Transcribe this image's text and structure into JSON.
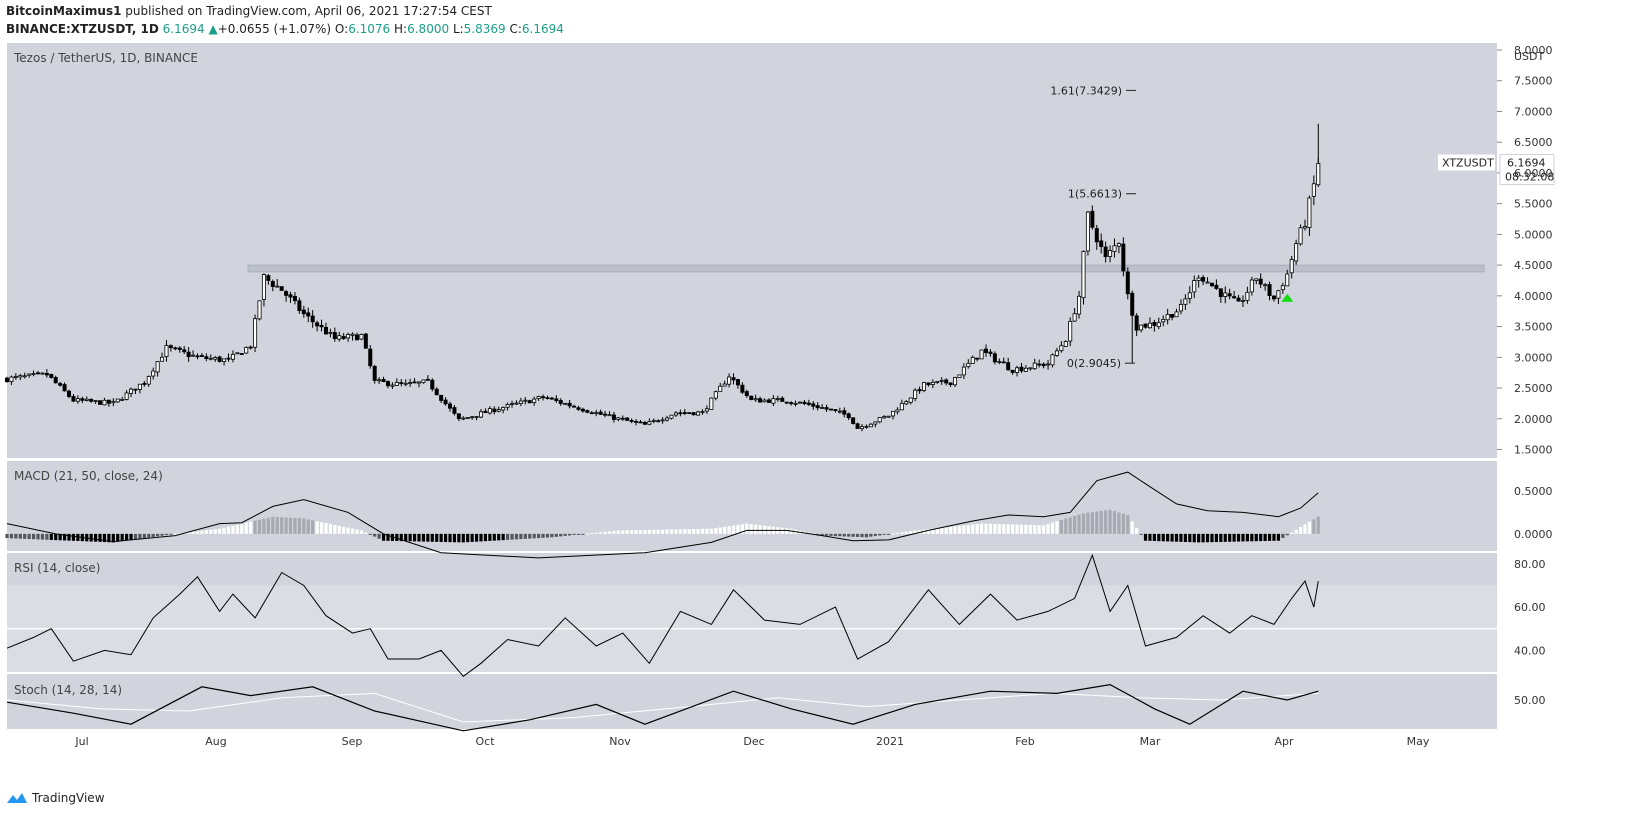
{
  "header": {
    "author": "BitcoinMaximus1",
    "published_text": "published on TradingView.com, April 06, 2021 17:27:54 CEST",
    "symbol": "BINANCE:XTZUSDT, 1D",
    "last": "6.1694",
    "change": "+0.0655 (+1.07%)",
    "open_label": "O:",
    "open": "6.1076",
    "high_label": "H:",
    "high": "6.8000",
    "low_label": "L:",
    "low": "5.8369",
    "close_label": "C:",
    "close": "6.1694"
  },
  "footer": {
    "brand": "TradingView"
  },
  "colors": {
    "panel_bg": "#d1d4dc",
    "rsi_band": "#dadde4",
    "candle": "#000000",
    "zone": "#b8bcc6",
    "arrow": "#11dd11",
    "tag_bg": "#ffffff"
  },
  "chart_data": [
    {
      "type": "candlestick",
      "title": "Tezos / TetherUS, 1D, BINANCE",
      "y_unit": "USDT",
      "ylim": [
        1.5,
        8.0
      ],
      "y_ticks": [
        "8.0000",
        "7.5000",
        "7.0000",
        "6.5000",
        "6.0000",
        "5.5000",
        "5.0000",
        "4.5000",
        "4.0000",
        "3.5000",
        "3.0000",
        "2.5000",
        "2.0000",
        "1.5000"
      ],
      "x_ticks": [
        "Jul",
        "Aug",
        "Sep",
        "Oct",
        "Nov",
        "Dec",
        "2021",
        "Feb",
        "Mar",
        "Apr",
        "May"
      ],
      "price_tag": {
        "symbol": "XTZUSDT",
        "value": "6.1694",
        "countdown": "08:32:08"
      },
      "fib_levels": [
        {
          "label": "1.61(7.3429)",
          "value": 7.3429
        },
        {
          "label": "1(5.6613)",
          "value": 5.6613
        },
        {
          "label": "0(2.9045)",
          "value": 2.9045
        }
      ],
      "horizontal_zone": {
        "low": 4.39,
        "high": 4.5
      },
      "arrow_marker": {
        "date": "2021-03-30",
        "value": 3.97
      },
      "closes": [
        {
          "date": "2020-06-14",
          "close": 2.65
        },
        {
          "date": "2020-06-23",
          "close": 2.72
        },
        {
          "date": "2020-06-29",
          "close": 2.3
        },
        {
          "date": "2020-07-08",
          "close": 2.25
        },
        {
          "date": "2020-07-15",
          "close": 2.6
        },
        {
          "date": "2020-07-20",
          "close": 3.15
        },
        {
          "date": "2020-07-27",
          "close": 3.0
        },
        {
          "date": "2020-08-03",
          "close": 2.95
        },
        {
          "date": "2020-08-08",
          "close": 3.2
        },
        {
          "date": "2020-08-11",
          "close": 4.3
        },
        {
          "date": "2020-08-15",
          "close": 4.1
        },
        {
          "date": "2020-08-20",
          "close": 3.7
        },
        {
          "date": "2020-08-27",
          "close": 3.3
        },
        {
          "date": "2020-09-02",
          "close": 3.35
        },
        {
          "date": "2020-09-05",
          "close": 2.6
        },
        {
          "date": "2020-09-12",
          "close": 2.55
        },
        {
          "date": "2020-09-17",
          "close": 2.6
        },
        {
          "date": "2020-09-24",
          "close": 1.98
        },
        {
          "date": "2020-10-02",
          "close": 2.15
        },
        {
          "date": "2020-10-13",
          "close": 2.35
        },
        {
          "date": "2020-10-20",
          "close": 2.2
        },
        {
          "date": "2020-10-27",
          "close": 2.05
        },
        {
          "date": "2020-11-05",
          "close": 1.9
        },
        {
          "date": "2020-11-12",
          "close": 2.1
        },
        {
          "date": "2020-11-18",
          "close": 2.1
        },
        {
          "date": "2020-11-24",
          "close": 2.7
        },
        {
          "date": "2020-11-29",
          "close": 2.3
        },
        {
          "date": "2020-12-07",
          "close": 2.3
        },
        {
          "date": "2020-12-14",
          "close": 2.2
        },
        {
          "date": "2020-12-21",
          "close": 2.05
        },
        {
          "date": "2020-12-23",
          "close": 1.85
        },
        {
          "date": "2020-12-30",
          "close": 2.05
        },
        {
          "date": "2021-01-07",
          "close": 2.55
        },
        {
          "date": "2021-01-13",
          "close": 2.6
        },
        {
          "date": "2021-01-20",
          "close": 3.1
        },
        {
          "date": "2021-01-27",
          "close": 2.8
        },
        {
          "date": "2021-02-04",
          "close": 2.9
        },
        {
          "date": "2021-02-08",
          "close": 3.3
        },
        {
          "date": "2021-02-11",
          "close": 4.0
        },
        {
          "date": "2021-02-13",
          "close": 5.3
        },
        {
          "date": "2021-02-17",
          "close": 4.6
        },
        {
          "date": "2021-02-20",
          "close": 4.9
        },
        {
          "date": "2021-02-22",
          "close": 4.0
        },
        {
          "date": "2021-02-24",
          "close": 3.5
        },
        {
          "date": "2021-02-28",
          "close": 3.55
        },
        {
          "date": "2021-03-06",
          "close": 3.8
        },
        {
          "date": "2021-03-10",
          "close": 4.35
        },
        {
          "date": "2021-03-15",
          "close": 4.05
        },
        {
          "date": "2021-03-19",
          "close": 3.85
        },
        {
          "date": "2021-03-23",
          "close": 4.3
        },
        {
          "date": "2021-03-27",
          "close": 3.95
        },
        {
          "date": "2021-03-30",
          "close": 4.35
        },
        {
          "date": "2021-04-01",
          "close": 4.85
        },
        {
          "date": "2021-04-03",
          "close": 5.2
        },
        {
          "date": "2021-04-05",
          "close": 5.8
        },
        {
          "date": "2021-04-06",
          "close": 6.1694
        }
      ],
      "wick_extremes": [
        {
          "date": "2021-02-23",
          "low": 2.9045
        },
        {
          "date": "2021-04-06",
          "high": 6.8
        }
      ]
    },
    {
      "type": "line",
      "title": "MACD (21, 50, close, 24)",
      "ylim": [
        -0.2,
        0.85
      ],
      "y_ticks": [
        "0.5000",
        "0.0000"
      ],
      "series": [
        {
          "kind": "macd_line",
          "points": [
            [
              "2020-06-14",
              0.12
            ],
            [
              "2020-06-25",
              0.0
            ],
            [
              "2020-07-08",
              -0.09
            ],
            [
              "2020-07-22",
              -0.02
            ],
            [
              "2020-08-01",
              0.12
            ],
            [
              "2020-08-06",
              0.13
            ],
            [
              "2020-08-13",
              0.32
            ],
            [
              "2020-08-20",
              0.4
            ],
            [
              "2020-08-30",
              0.25
            ],
            [
              "2020-09-07",
              0.0
            ],
            [
              "2020-09-20",
              -0.22
            ],
            [
              "2020-10-12",
              -0.28
            ],
            [
              "2020-11-05",
              -0.22
            ],
            [
              "2020-11-20",
              -0.1
            ],
            [
              "2020-11-28",
              0.04
            ],
            [
              "2020-12-07",
              0.04
            ],
            [
              "2020-12-15",
              -0.02
            ],
            [
              "2020-12-22",
              -0.08
            ],
            [
              "2020-12-30",
              -0.07
            ],
            [
              "2021-01-08",
              0.04
            ],
            [
              "2021-01-18",
              0.15
            ],
            [
              "2021-01-26",
              0.22
            ],
            [
              "2021-02-03",
              0.2
            ],
            [
              "2021-02-09",
              0.25
            ],
            [
              "2021-02-15",
              0.62
            ],
            [
              "2021-02-22",
              0.72
            ],
            [
              "2021-02-27",
              0.55
            ],
            [
              "2021-03-05",
              0.35
            ],
            [
              "2021-03-12",
              0.27
            ],
            [
              "2021-03-20",
              0.25
            ],
            [
              "2021-03-28",
              0.2
            ],
            [
              "2021-04-02",
              0.3
            ],
            [
              "2021-04-06",
              0.48
            ]
          ]
        },
        {
          "kind": "histogram",
          "points": [
            [
              "2020-06-14",
              -0.05
            ],
            [
              "2020-07-08",
              -0.1
            ],
            [
              "2020-07-22",
              0.0
            ],
            [
              "2020-08-01",
              0.06
            ],
            [
              "2020-08-13",
              0.2
            ],
            [
              "2020-08-20",
              0.18
            ],
            [
              "2020-09-02",
              0.04
            ],
            [
              "2020-09-07",
              -0.08
            ],
            [
              "2020-09-25",
              -0.1
            ],
            [
              "2020-10-15",
              -0.04
            ],
            [
              "2020-10-30",
              0.04
            ],
            [
              "2020-11-20",
              0.06
            ],
            [
              "2020-11-28",
              0.12
            ],
            [
              "2020-12-08",
              0.06
            ],
            [
              "2020-12-15",
              -0.02
            ],
            [
              "2020-12-25",
              -0.04
            ],
            [
              "2021-01-05",
              0.04
            ],
            [
              "2021-01-20",
              0.12
            ],
            [
              "2021-02-03",
              0.1
            ],
            [
              "2021-02-12",
              0.24
            ],
            [
              "2021-02-18",
              0.28
            ],
            [
              "2021-02-22",
              0.22
            ],
            [
              "2021-02-26",
              -0.08
            ],
            [
              "2021-03-10",
              -0.1
            ],
            [
              "2021-03-28",
              -0.08
            ],
            [
              "2021-04-02",
              0.08
            ],
            [
              "2021-04-06",
              0.2
            ]
          ]
        }
      ]
    },
    {
      "type": "line",
      "title": "RSI (14, close)",
      "ylim": [
        30,
        85
      ],
      "y_ticks": [
        "80.00",
        "60.00",
        "40.00"
      ],
      "band": [
        30,
        70
      ],
      "midline": 50,
      "series": [
        {
          "kind": "rsi",
          "points": [
            [
              "2020-06-14",
              41
            ],
            [
              "2020-06-20",
              46
            ],
            [
              "2020-06-24",
              50
            ],
            [
              "2020-06-29",
              35
            ],
            [
              "2020-07-06",
              40
            ],
            [
              "2020-07-12",
              38
            ],
            [
              "2020-07-17",
              55
            ],
            [
              "2020-07-23",
              66
            ],
            [
              "2020-07-27",
              74
            ],
            [
              "2020-08-01",
              58
            ],
            [
              "2020-08-04",
              66
            ],
            [
              "2020-08-09",
              55
            ],
            [
              "2020-08-15",
              76
            ],
            [
              "2020-08-20",
              70
            ],
            [
              "2020-08-25",
              56
            ],
            [
              "2020-08-31",
              48
            ],
            [
              "2020-09-04",
              50
            ],
            [
              "2020-09-08",
              36
            ],
            [
              "2020-09-15",
              36
            ],
            [
              "2020-09-20",
              40
            ],
            [
              "2020-09-25",
              28
            ],
            [
              "2020-09-29",
              34
            ],
            [
              "2020-10-05",
              45
            ],
            [
              "2020-10-12",
              42
            ],
            [
              "2020-10-18",
              55
            ],
            [
              "2020-10-25",
              42
            ],
            [
              "2020-10-31",
              48
            ],
            [
              "2020-11-06",
              34
            ],
            [
              "2020-11-13",
              58
            ],
            [
              "2020-11-20",
              52
            ],
            [
              "2020-11-25",
              68
            ],
            [
              "2020-12-02",
              54
            ],
            [
              "2020-12-10",
              52
            ],
            [
              "2020-12-18",
              60
            ],
            [
              "2020-12-23",
              36
            ],
            [
              "2020-12-30",
              44
            ],
            [
              "2021-01-08",
              68
            ],
            [
              "2021-01-15",
              52
            ],
            [
              "2021-01-22",
              66
            ],
            [
              "2021-01-28",
              54
            ],
            [
              "2021-02-04",
              58
            ],
            [
              "2021-02-10",
              64
            ],
            [
              "2021-02-14",
              84
            ],
            [
              "2021-02-18",
              58
            ],
            [
              "2021-02-22",
              70
            ],
            [
              "2021-02-26",
              42
            ],
            [
              "2021-03-05",
              46
            ],
            [
              "2021-03-11",
              56
            ],
            [
              "2021-03-17",
              48
            ],
            [
              "2021-03-22",
              56
            ],
            [
              "2021-03-27",
              52
            ],
            [
              "2021-03-31",
              64
            ],
            [
              "2021-04-03",
              72
            ],
            [
              "2021-04-05",
              60
            ],
            [
              "2021-04-06",
              72
            ]
          ]
        }
      ]
    },
    {
      "type": "line",
      "title": "Stoch (14, 28, 14)",
      "ylim": [
        0,
        100
      ],
      "y_ticks": [
        "50.00"
      ],
      "series": [
        {
          "kind": "stoch_k",
          "points": [
            [
              "2020-06-14",
              48
            ],
            [
              "2020-06-29",
              38
            ],
            [
              "2020-07-12",
              28
            ],
            [
              "2020-07-28",
              62
            ],
            [
              "2020-08-08",
              54
            ],
            [
              "2020-08-22",
              62
            ],
            [
              "2020-09-05",
              40
            ],
            [
              "2020-09-25",
              22
            ],
            [
              "2020-10-10",
              32
            ],
            [
              "2020-10-25",
              46
            ],
            [
              "2020-11-05",
              28
            ],
            [
              "2020-11-25",
              58
            ],
            [
              "2020-12-08",
              42
            ],
            [
              "2020-12-22",
              28
            ],
            [
              "2021-01-05",
              46
            ],
            [
              "2021-01-22",
              58
            ],
            [
              "2021-02-06",
              56
            ],
            [
              "2021-02-18",
              64
            ],
            [
              "2021-02-28",
              42
            ],
            [
              "2021-03-08",
              28
            ],
            [
              "2021-03-20",
              58
            ],
            [
              "2021-03-30",
              50
            ],
            [
              "2021-04-06",
              58
            ]
          ]
        },
        {
          "kind": "stoch_d",
          "points": [
            [
              "2020-06-14",
              50
            ],
            [
              "2020-07-05",
              42
            ],
            [
              "2020-07-25",
              40
            ],
            [
              "2020-08-15",
              52
            ],
            [
              "2020-09-05",
              56
            ],
            [
              "2020-09-25",
              30
            ],
            [
              "2020-10-20",
              34
            ],
            [
              "2020-11-15",
              44
            ],
            [
              "2020-12-05",
              52
            ],
            [
              "2020-12-25",
              44
            ],
            [
              "2021-01-15",
              50
            ],
            [
              "2021-02-05",
              56
            ],
            [
              "2021-02-25",
              52
            ],
            [
              "2021-03-15",
              50
            ],
            [
              "2021-04-06",
              56
            ]
          ]
        }
      ]
    }
  ]
}
